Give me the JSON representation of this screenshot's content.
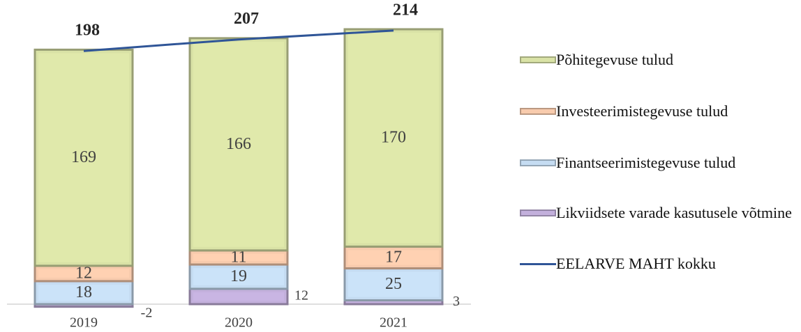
{
  "chart_data": {
    "type": "bar",
    "stacked": true,
    "categories": [
      "2019",
      "2020",
      "2021"
    ],
    "series": [
      {
        "name": "Põhitegevuse tulud",
        "color": "#d9e2a6",
        "values": [
          169,
          166,
          170
        ]
      },
      {
        "name": "Investeerimistegevuse tulud",
        "color": "#f8cbad",
        "values": [
          12,
          11,
          17
        ]
      },
      {
        "name": "Finantseerimistegevuse tulud",
        "color": "#c5dcf2",
        "values": [
          18,
          19,
          25
        ]
      },
      {
        "name": "Likviidsete varade kasutusele võtmine",
        "color": "#c3b0dc",
        "values": [
          -2,
          12,
          3
        ]
      },
      {
        "name": "EELARVE MAHT kokku",
        "color": "#2f5597",
        "type": "line",
        "values": [
          198,
          207,
          214
        ]
      }
    ],
    "legend": "right"
  }
}
